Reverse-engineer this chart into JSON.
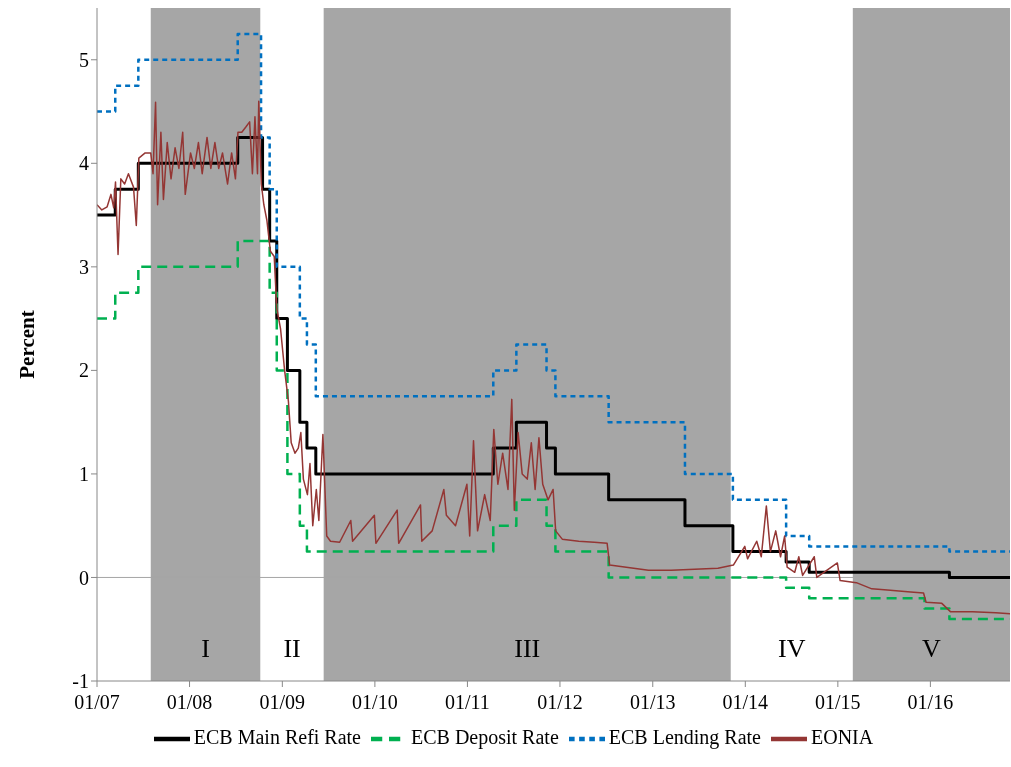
{
  "chart_data": {
    "type": "step",
    "ylabel": "Percent",
    "legend": "bottom",
    "grid": false,
    "xlim": [
      "2007-01-01",
      "2016-11-10"
    ],
    "xticks": [
      {
        "value": "2007-01-01",
        "label": "01/07"
      },
      {
        "value": "2008-01-01",
        "label": "01/08"
      },
      {
        "value": "2009-01-01",
        "label": "01/09"
      },
      {
        "value": "2010-01-01",
        "label": "01/10"
      },
      {
        "value": "2011-01-01",
        "label": "01/11"
      },
      {
        "value": "2012-01-01",
        "label": "01/12"
      },
      {
        "value": "2013-01-01",
        "label": "01/13"
      },
      {
        "value": "2014-01-01",
        "label": "01/14"
      },
      {
        "value": "2015-01-01",
        "label": "01/15"
      },
      {
        "value": "2016-01-01",
        "label": "01/16"
      }
    ],
    "ylim": [
      -1,
      5.5
    ],
    "yticks": [
      -1,
      0,
      1,
      2,
      3,
      4,
      5
    ],
    "ref_lines": [
      {
        "axis": "y",
        "value": 0,
        "color": "#a6a6a6"
      }
    ],
    "bands": [
      {
        "axis": "x",
        "from": "2007-08-01",
        "to": "2008-10-07",
        "label": "I",
        "color": "#a6a6a6"
      },
      {
        "axis": "x",
        "from": "2008-10-07",
        "to": "2009-06-13",
        "label": "II",
        "color": "#ffffff"
      },
      {
        "axis": "x",
        "from": "2009-06-13",
        "to": "2013-11-05",
        "label": "III",
        "color": "#a6a6a6"
      },
      {
        "axis": "x",
        "from": "2013-11-05",
        "to": "2015-03-01",
        "label": "IV",
        "color": "#ffffff"
      },
      {
        "axis": "x",
        "from": "2015-03-01",
        "to": "2016-11-10",
        "label": "V",
        "color": "#a6a6a6"
      }
    ],
    "series": [
      {
        "name": "ECB Main Refi Rate",
        "color": "#000000",
        "line_style": "solid",
        "x": [
          "2007-01-01",
          "2007-03-14",
          "2007-06-13",
          "2008-07-09",
          "2008-10-15",
          "2008-11-12",
          "2008-12-10",
          "2009-01-21",
          "2009-03-11",
          "2009-04-08",
          "2009-05-13",
          "2011-04-13",
          "2011-07-13",
          "2011-11-09",
          "2011-12-14",
          "2012-07-11",
          "2013-05-08",
          "2013-11-13",
          "2014-06-11",
          "2014-09-10",
          "2016-03-16",
          "2016-11-10"
        ],
        "values": [
          3.5,
          3.75,
          4.0,
          4.25,
          3.75,
          3.25,
          2.5,
          2.0,
          1.5,
          1.25,
          1.0,
          1.25,
          1.5,
          1.25,
          1.0,
          0.75,
          0.5,
          0.25,
          0.15,
          0.05,
          0.0,
          0.0
        ]
      },
      {
        "name": "ECB Deposit Rate",
        "color": "#00b050",
        "line_style": "dashed",
        "x": [
          "2007-01-01",
          "2007-03-14",
          "2007-06-13",
          "2008-07-09",
          "2008-11-12",
          "2008-12-10",
          "2009-01-21",
          "2009-03-11",
          "2009-04-08",
          "2011-04-13",
          "2011-07-13",
          "2011-11-09",
          "2011-12-14",
          "2012-07-11",
          "2014-06-11",
          "2014-09-10",
          "2015-12-09",
          "2016-03-16",
          "2016-11-10"
        ],
        "values": [
          2.5,
          2.75,
          3.0,
          3.25,
          2.75,
          2.0,
          1.0,
          0.5,
          0.25,
          0.5,
          0.75,
          0.5,
          0.25,
          0.0,
          -0.1,
          -0.2,
          -0.3,
          -0.4,
          -0.4
        ]
      },
      {
        "name": "ECB Lending Rate",
        "color": "#0070c0",
        "line_style": "dotted",
        "x": [
          "2007-01-01",
          "2007-03-14",
          "2007-06-13",
          "2008-07-09",
          "2008-10-09",
          "2008-11-12",
          "2008-12-10",
          "2009-03-11",
          "2009-04-08",
          "2009-05-13",
          "2011-04-13",
          "2011-07-13",
          "2011-11-09",
          "2011-12-14",
          "2012-07-11",
          "2013-05-08",
          "2013-11-13",
          "2014-06-11",
          "2014-09-10",
          "2016-03-16",
          "2016-11-10"
        ],
        "values": [
          4.5,
          4.75,
          5.0,
          5.25,
          4.25,
          3.75,
          3.0,
          2.5,
          2.25,
          1.75,
          2.0,
          2.25,
          2.0,
          1.75,
          1.5,
          1.0,
          0.75,
          0.4,
          0.3,
          0.25,
          0.25
        ]
      },
      {
        "name": "EONIA",
        "type": "line",
        "color": "#943634",
        "line_style": "solid",
        "x": [
          "2007-01-01",
          "2007-01-20",
          "2007-02-10",
          "2007-02-25",
          "2007-03-08",
          "2007-03-15",
          "2007-03-25",
          "2007-04-05",
          "2007-04-20",
          "2007-05-05",
          "2007-05-25",
          "2007-06-05",
          "2007-06-15",
          "2007-07-10",
          "2007-08-01",
          "2007-08-10",
          "2007-08-20",
          "2007-08-28",
          "2007-09-10",
          "2007-09-20",
          "2007-10-05",
          "2007-10-20",
          "2007-11-05",
          "2007-11-20",
          "2007-12-05",
          "2007-12-15",
          "2008-01-05",
          "2008-01-20",
          "2008-02-05",
          "2008-02-20",
          "2008-03-10",
          "2008-03-25",
          "2008-04-10",
          "2008-04-25",
          "2008-05-10",
          "2008-05-30",
          "2008-06-15",
          "2008-06-30",
          "2008-07-10",
          "2008-07-25",
          "2008-08-10",
          "2008-08-25",
          "2008-09-05",
          "2008-09-15",
          "2008-09-25",
          "2008-09-30",
          "2008-10-10",
          "2008-10-20",
          "2008-11-01",
          "2008-11-15",
          "2008-11-30",
          "2008-12-10",
          "2008-12-25",
          "2009-01-10",
          "2009-01-25",
          "2009-02-05",
          "2009-02-20",
          "2009-03-05",
          "2009-03-15",
          "2009-03-25",
          "2009-04-10",
          "2009-04-20",
          "2009-05-01",
          "2009-05-15",
          "2009-05-25",
          "2009-06-10",
          "2009-06-25",
          "2009-07-10",
          "2009-08-15",
          "2009-09-28",
          "2009-10-05",
          "2009-12-30",
          "2010-01-05",
          "2010-03-30",
          "2010-04-05",
          "2010-06-30",
          "2010-07-05",
          "2010-08-15",
          "2010-09-30",
          "2010-10-10",
          "2010-11-15",
          "2010-12-30",
          "2011-01-10",
          "2011-01-25",
          "2011-02-10",
          "2011-03-10",
          "2011-04-01",
          "2011-04-15",
          "2011-05-01",
          "2011-05-20",
          "2011-06-10",
          "2011-06-25",
          "2011-07-05",
          "2011-07-20",
          "2011-08-05",
          "2011-08-25",
          "2011-09-10",
          "2011-09-25",
          "2011-10-10",
          "2011-10-25",
          "2011-11-15",
          "2011-12-05",
          "2011-12-15",
          "2012-01-10",
          "2012-03-15",
          "2012-05-15",
          "2012-07-05",
          "2012-07-15",
          "2012-12-15",
          "2013-03-15",
          "2013-06-15",
          "2013-09-15",
          "2013-11-15",
          "2013-12-30",
          "2014-01-10",
          "2014-02-15",
          "2014-03-05",
          "2014-03-25",
          "2014-04-10",
          "2014-05-01",
          "2014-05-20",
          "2014-06-05",
          "2014-06-15",
          "2014-07-15",
          "2014-07-31",
          "2014-08-15",
          "2014-09-30",
          "2014-10-10",
          "2014-12-30",
          "2015-01-10",
          "2015-03-15",
          "2015-05-15",
          "2015-07-15",
          "2015-10-15",
          "2015-12-05",
          "2015-12-15",
          "2016-02-15",
          "2016-03-20",
          "2016-06-15",
          "2016-09-15",
          "2016-11-10"
        ],
        "values": [
          3.6,
          3.55,
          3.58,
          3.7,
          3.57,
          3.82,
          3.12,
          3.85,
          3.8,
          3.9,
          3.77,
          3.4,
          4.05,
          4.1,
          4.1,
          3.9,
          4.59,
          3.6,
          4.3,
          3.65,
          4.2,
          3.85,
          4.15,
          3.95,
          4.3,
          3.7,
          4.1,
          3.95,
          4.2,
          3.9,
          4.25,
          3.95,
          4.2,
          3.95,
          4.1,
          3.8,
          4.1,
          3.85,
          4.3,
          4.3,
          4.35,
          4.4,
          3.9,
          4.45,
          3.9,
          4.6,
          3.8,
          3.6,
          3.45,
          3.15,
          3.1,
          2.6,
          2.4,
          2.0,
          1.7,
          1.3,
          1.2,
          1.25,
          1.4,
          0.95,
          0.8,
          1.1,
          0.5,
          0.85,
          0.55,
          1.38,
          0.4,
          0.35,
          0.34,
          0.55,
          0.35,
          0.6,
          0.33,
          0.65,
          0.33,
          0.7,
          0.35,
          0.45,
          0.85,
          0.6,
          0.5,
          0.9,
          0.4,
          1.32,
          0.45,
          0.8,
          0.55,
          1.43,
          0.9,
          1.2,
          0.85,
          1.72,
          0.65,
          1.4,
          1.0,
          0.95,
          1.3,
          0.85,
          1.35,
          0.9,
          0.75,
          0.85,
          0.45,
          0.37,
          0.35,
          0.34,
          0.33,
          0.12,
          0.07,
          0.07,
          0.08,
          0.09,
          0.12,
          0.3,
          0.18,
          0.35,
          0.2,
          0.69,
          0.25,
          0.45,
          0.2,
          0.4,
          0.1,
          0.05,
          0.2,
          0.02,
          0.2,
          0.0,
          0.14,
          -0.03,
          -0.05,
          -0.11,
          -0.12,
          -0.14,
          -0.15,
          -0.24,
          -0.25,
          -0.33,
          -0.33,
          -0.34,
          -0.35
        ]
      }
    ]
  }
}
